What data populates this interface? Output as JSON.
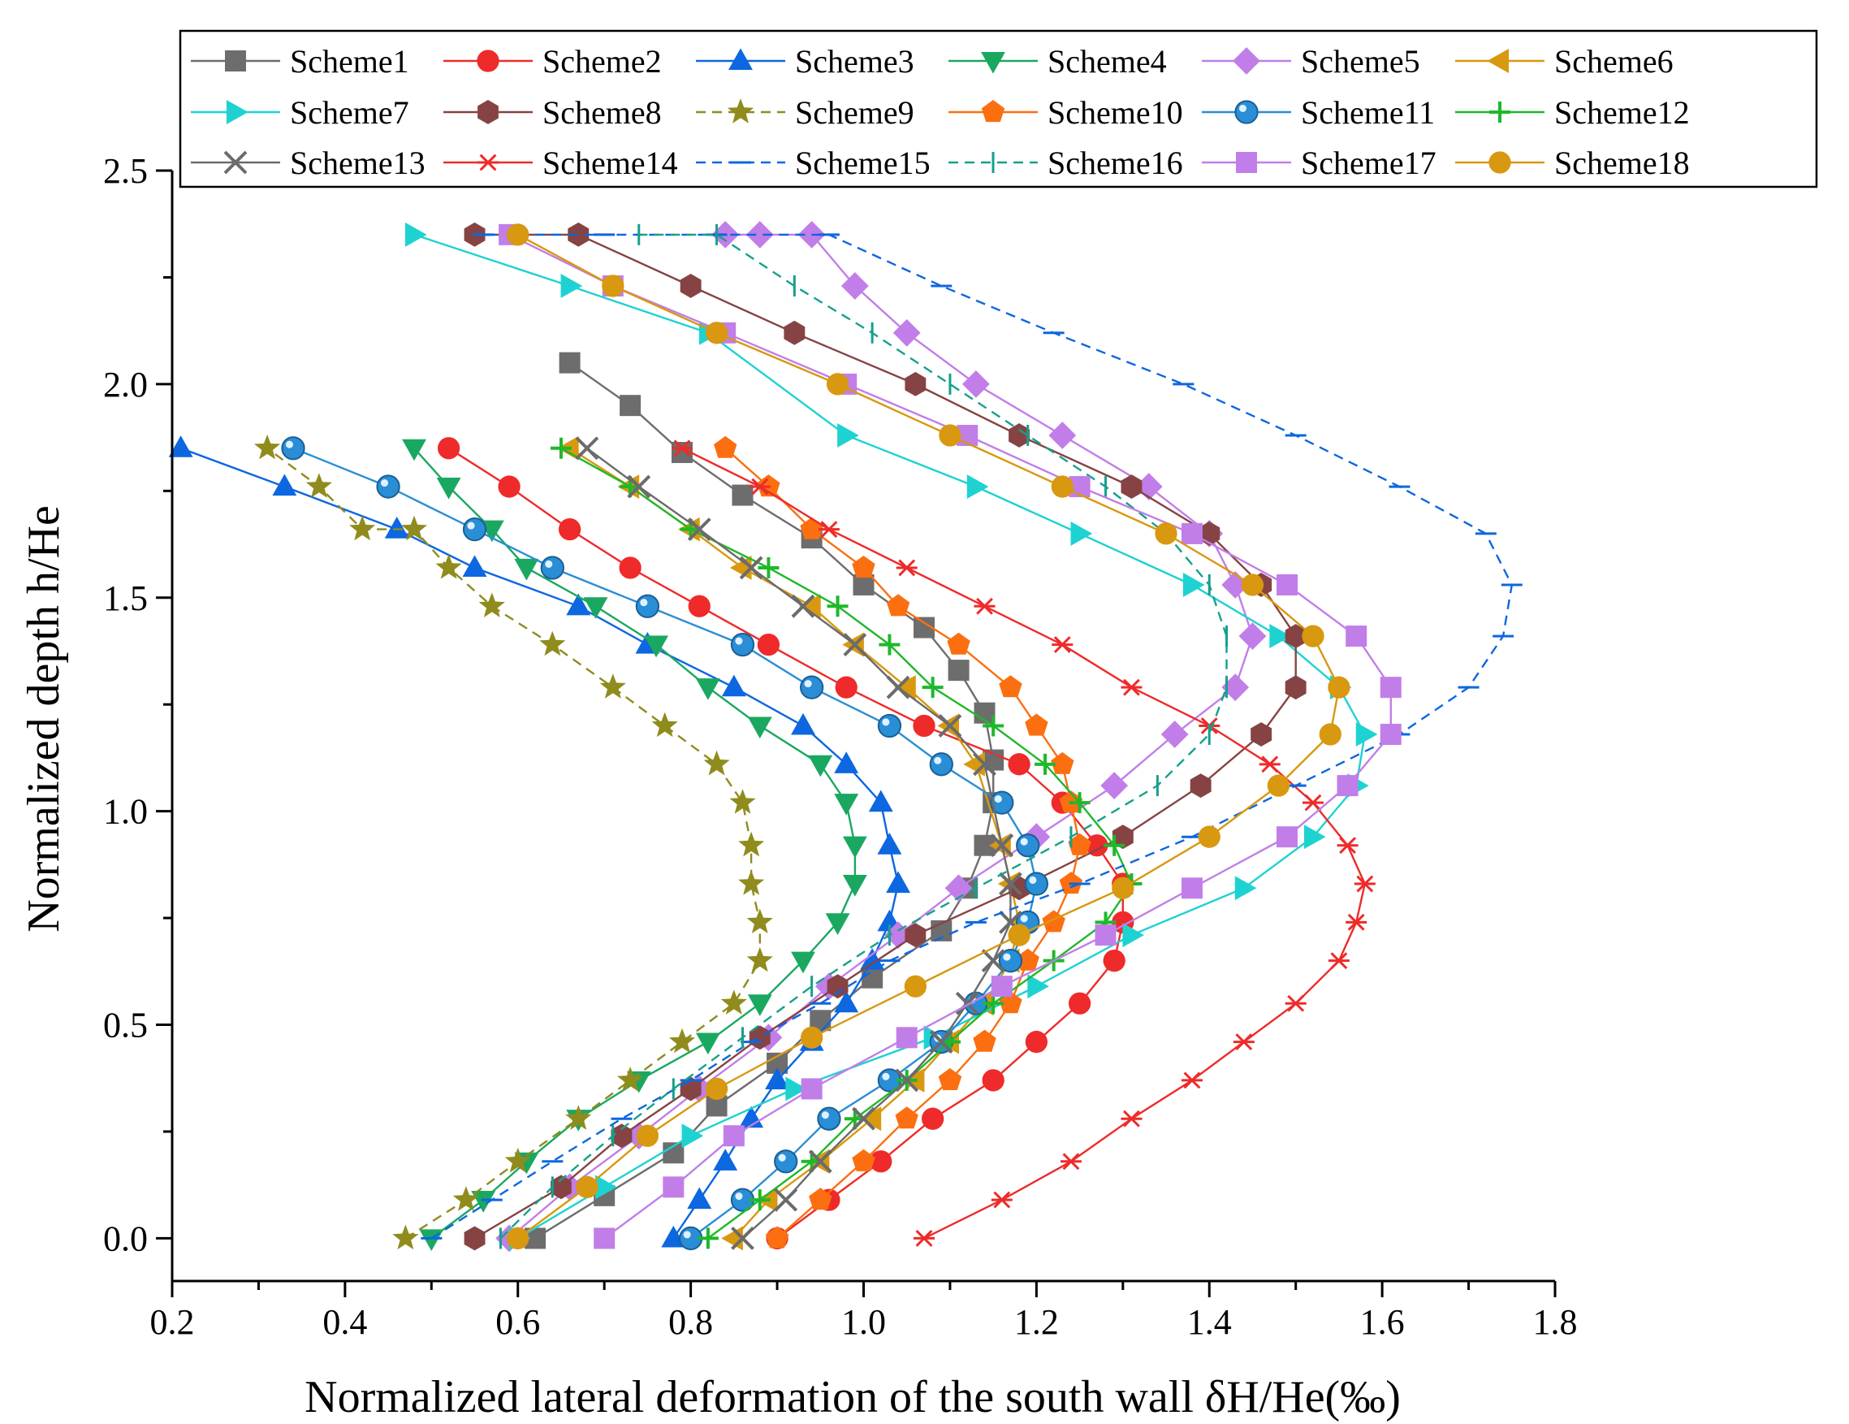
{
  "chart_data": {
    "type": "line",
    "xlabel": "Normalized lateral deformation of the south wall δH/He(‰)",
    "ylabel": "Normalized depth h/He",
    "xlim": [
      0.2,
      1.8
    ],
    "ylim": [
      -0.1,
      2.5
    ],
    "xticks": [
      "0.2",
      "0.4",
      "0.6",
      "0.8",
      "1.0",
      "1.2",
      "1.4",
      "1.6",
      "1.8"
    ],
    "yticks": [
      "0.0",
      "0.5",
      "1.0",
      "1.5",
      "2.0",
      "2.5"
    ],
    "legend_position": "top",
    "series": [
      {
        "name": "Scheme1",
        "color": "#6d6d6d",
        "marker": "square",
        "dash": "",
        "x": [
          0.62,
          0.7,
          0.78,
          0.83,
          0.9,
          0.95,
          1.01,
          1.09,
          1.12,
          1.14,
          1.15,
          1.15,
          1.14,
          1.11,
          1.07,
          1.0,
          0.94,
          0.86,
          0.79,
          0.73,
          0.66
        ],
        "y": [
          0.0,
          0.1,
          0.2,
          0.31,
          0.41,
          0.51,
          0.61,
          0.72,
          0.82,
          0.92,
          1.02,
          1.12,
          1.23,
          1.33,
          1.43,
          1.53,
          1.64,
          1.74,
          1.84,
          1.95,
          2.05
        ]
      },
      {
        "name": "Scheme2",
        "color": "#ef2a2a",
        "marker": "circle",
        "dash": "",
        "x": [
          0.9,
          0.96,
          1.02,
          1.08,
          1.15,
          1.2,
          1.25,
          1.29,
          1.3,
          1.3,
          1.27,
          1.23,
          1.18,
          1.07,
          0.98,
          0.89,
          0.81,
          0.73,
          0.66,
          0.59,
          0.52
        ],
        "y": [
          0.0,
          0.09,
          0.18,
          0.28,
          0.37,
          0.46,
          0.55,
          0.65,
          0.74,
          0.83,
          0.92,
          1.02,
          1.11,
          1.2,
          1.29,
          1.39,
          1.48,
          1.57,
          1.66,
          1.76,
          1.85
        ]
      },
      {
        "name": "Scheme3",
        "color": "#0c67e0",
        "marker": "triangle-up",
        "dash": "",
        "x": [
          0.78,
          0.81,
          0.84,
          0.87,
          0.9,
          0.94,
          0.98,
          1.01,
          1.03,
          1.04,
          1.03,
          1.02,
          0.98,
          0.93,
          0.85,
          0.75,
          0.67,
          0.55,
          0.46,
          0.33,
          0.21
        ],
        "y": [
          0.0,
          0.09,
          0.18,
          0.28,
          0.37,
          0.46,
          0.55,
          0.65,
          0.74,
          0.83,
          0.92,
          1.02,
          1.11,
          1.2,
          1.29,
          1.39,
          1.48,
          1.57,
          1.66,
          1.76,
          1.85
        ]
      },
      {
        "name": "Scheme4",
        "color": "#1aa861",
        "marker": "triangle-down",
        "dash": "",
        "x": [
          0.5,
          0.56,
          0.61,
          0.67,
          0.74,
          0.82,
          0.88,
          0.93,
          0.97,
          0.99,
          0.99,
          0.98,
          0.95,
          0.88,
          0.82,
          0.76,
          0.69,
          0.61,
          0.57,
          0.52,
          0.48
        ],
        "y": [
          0.0,
          0.09,
          0.18,
          0.28,
          0.37,
          0.46,
          0.55,
          0.65,
          0.74,
          0.83,
          0.92,
          1.02,
          1.11,
          1.2,
          1.29,
          1.39,
          1.48,
          1.57,
          1.66,
          1.76,
          1.85
        ]
      },
      {
        "name": "Scheme5",
        "color": "#c17ee8",
        "marker": "diamond",
        "dash": "",
        "x": [
          0.59,
          0.66,
          0.74,
          0.81,
          0.89,
          0.96,
          1.04,
          1.11,
          1.2,
          1.29,
          1.36,
          1.43,
          1.45,
          1.43,
          1.4,
          1.33,
          1.23,
          1.13,
          1.05,
          0.99,
          0.94,
          0.88,
          0.84
        ],
        "y": [
          0.0,
          0.12,
          0.24,
          0.35,
          0.47,
          0.59,
          0.71,
          0.82,
          0.94,
          1.06,
          1.18,
          1.29,
          1.41,
          1.53,
          1.65,
          1.76,
          1.88,
          2.0,
          2.12,
          2.23,
          2.35,
          2.35,
          2.35
        ]
      },
      {
        "name": "Scheme6",
        "color": "#d8980f",
        "marker": "triangle-left",
        "dash": "",
        "x": [
          0.85,
          0.89,
          0.95,
          1.01,
          1.06,
          1.1,
          1.14,
          1.17,
          1.18,
          1.17,
          1.16,
          1.13,
          1.1,
          1.05,
          0.99,
          0.94,
          0.86,
          0.8,
          0.73,
          0.66
        ],
        "y": [
          0.0,
          0.09,
          0.18,
          0.28,
          0.37,
          0.46,
          0.55,
          0.65,
          0.74,
          0.83,
          0.92,
          1.11,
          1.2,
          1.29,
          1.39,
          1.48,
          1.57,
          1.66,
          1.76,
          1.85
        ]
      },
      {
        "name": "Scheme7",
        "color": "#1fd2d2",
        "marker": "triangle-right",
        "dash": "",
        "x": [
          0.6,
          0.7,
          0.8,
          0.92,
          1.08,
          1.2,
          1.31,
          1.44,
          1.52,
          1.57,
          1.58,
          1.55,
          1.48,
          1.38,
          1.25,
          1.13,
          0.98,
          0.82,
          0.66,
          0.48
        ],
        "y": [
          0.0,
          0.12,
          0.24,
          0.35,
          0.47,
          0.59,
          0.71,
          0.82,
          0.94,
          1.06,
          1.18,
          1.29,
          1.41,
          1.53,
          1.65,
          1.76,
          1.88,
          2.12,
          2.23,
          2.35
        ]
      },
      {
        "name": "Scheme8",
        "color": "#864343",
        "marker": "hexagon",
        "dash": "",
        "x": [
          0.55,
          0.65,
          0.72,
          0.8,
          0.88,
          0.97,
          1.06,
          1.18,
          1.3,
          1.39,
          1.46,
          1.5,
          1.5,
          1.46,
          1.4,
          1.31,
          1.18,
          1.06,
          0.92,
          0.8,
          0.67,
          0.55
        ],
        "y": [
          0.0,
          0.12,
          0.24,
          0.35,
          0.47,
          0.59,
          0.71,
          0.82,
          0.94,
          1.06,
          1.18,
          1.29,
          1.41,
          1.53,
          1.65,
          1.76,
          1.88,
          2.0,
          2.12,
          2.23,
          2.35,
          2.35
        ]
      },
      {
        "name": "Scheme9",
        "color": "#8f8c1d",
        "marker": "star",
        "dash": "dash",
        "x": [
          0.47,
          0.54,
          0.6,
          0.67,
          0.73,
          0.79,
          0.85,
          0.88,
          0.88,
          0.87,
          0.87,
          0.86,
          0.83,
          0.77,
          0.71,
          0.64,
          0.57,
          0.52,
          0.48,
          0.42,
          0.37,
          0.31
        ],
        "y": [
          0.0,
          0.09,
          0.18,
          0.28,
          0.37,
          0.46,
          0.55,
          0.65,
          0.74,
          0.83,
          0.92,
          1.02,
          1.11,
          1.2,
          1.29,
          1.39,
          1.48,
          1.57,
          1.66,
          1.66,
          1.76,
          1.85
        ]
      },
      {
        "name": "Scheme10",
        "color": "#fb6f11",
        "marker": "pentagon",
        "dash": "",
        "x": [
          0.9,
          0.95,
          1.0,
          1.05,
          1.1,
          1.14,
          1.17,
          1.19,
          1.22,
          1.24,
          1.25,
          1.24,
          1.23,
          1.2,
          1.17,
          1.11,
          1.04,
          1.0,
          0.94,
          0.89,
          0.84
        ],
        "y": [
          0.0,
          0.09,
          0.18,
          0.28,
          0.37,
          0.46,
          0.55,
          0.65,
          0.74,
          0.83,
          0.92,
          1.02,
          1.11,
          1.2,
          1.29,
          1.39,
          1.48,
          1.57,
          1.66,
          1.76,
          1.85
        ]
      },
      {
        "name": "Scheme11",
        "color": "#2a8ed6",
        "marker": "sphere",
        "dash": "",
        "x": [
          0.8,
          0.86,
          0.91,
          0.96,
          1.03,
          1.09,
          1.13,
          1.17,
          1.19,
          1.2,
          1.19,
          1.16,
          1.09,
          1.03,
          0.94,
          0.86,
          0.75,
          0.64,
          0.55,
          0.45,
          0.34
        ],
        "y": [
          0.0,
          0.09,
          0.18,
          0.28,
          0.37,
          0.46,
          0.55,
          0.65,
          0.74,
          0.83,
          0.92,
          1.02,
          1.11,
          1.2,
          1.29,
          1.39,
          1.48,
          1.57,
          1.66,
          1.76,
          1.85
        ]
      },
      {
        "name": "Scheme12",
        "color": "#1fb82a",
        "marker": "plus",
        "dash": "",
        "x": [
          0.82,
          0.88,
          0.94,
          0.99,
          1.05,
          1.1,
          1.15,
          1.22,
          1.28,
          1.31,
          1.29,
          1.25,
          1.21,
          1.15,
          1.08,
          1.03,
          0.97,
          0.89,
          0.8,
          0.73,
          0.65
        ],
        "y": [
          0.0,
          0.09,
          0.18,
          0.28,
          0.37,
          0.46,
          0.55,
          0.65,
          0.74,
          0.83,
          0.92,
          1.02,
          1.11,
          1.2,
          1.29,
          1.39,
          1.48,
          1.57,
          1.66,
          1.76,
          1.85
        ]
      },
      {
        "name": "Scheme13",
        "color": "#6b6b6b",
        "marker": "x",
        "dash": "",
        "x": [
          0.86,
          0.91,
          0.95,
          1.0,
          1.05,
          1.09,
          1.12,
          1.15,
          1.17,
          1.17,
          1.16,
          1.14,
          1.1,
          1.04,
          0.99,
          0.93,
          0.87,
          0.81,
          0.74,
          0.68
        ],
        "y": [
          0.0,
          0.09,
          0.18,
          0.28,
          0.37,
          0.46,
          0.55,
          0.65,
          0.74,
          0.83,
          0.92,
          1.11,
          1.2,
          1.29,
          1.39,
          1.48,
          1.57,
          1.66,
          1.76,
          1.85
        ]
      },
      {
        "name": "Scheme14",
        "color": "#ef2a2a",
        "marker": "asterisk",
        "dash": "",
        "x": [
          1.07,
          1.16,
          1.24,
          1.31,
          1.38,
          1.44,
          1.5,
          1.55,
          1.57,
          1.58,
          1.56,
          1.52,
          1.47,
          1.4,
          1.31,
          1.23,
          1.14,
          1.05,
          0.96,
          0.88,
          0.79
        ],
        "y": [
          0.0,
          0.09,
          0.18,
          0.28,
          0.37,
          0.46,
          0.55,
          0.65,
          0.74,
          0.83,
          0.92,
          1.02,
          1.11,
          1.2,
          1.29,
          1.39,
          1.48,
          1.57,
          1.66,
          1.76,
          1.85
        ]
      },
      {
        "name": "Scheme15",
        "color": "#0c67e0",
        "marker": "hline",
        "dash": "dash",
        "x": [
          0.5,
          0.57,
          0.64,
          0.72,
          0.8,
          0.87,
          0.95,
          1.03,
          1.13,
          1.25,
          1.38,
          1.5,
          1.62,
          1.7,
          1.74,
          1.75,
          1.72,
          1.62,
          1.5,
          1.37,
          1.22,
          1.09,
          0.96,
          0.83,
          0.7,
          0.56
        ],
        "y": [
          0.0,
          0.09,
          0.18,
          0.28,
          0.37,
          0.46,
          0.55,
          0.65,
          0.74,
          0.83,
          0.94,
          1.06,
          1.18,
          1.29,
          1.41,
          1.53,
          1.65,
          1.76,
          1.88,
          2.0,
          2.12,
          2.23,
          2.35,
          2.35,
          2.35,
          2.35
        ]
      },
      {
        "name": "Scheme16",
        "color": "#16a08c",
        "marker": "vline",
        "dash": "dash",
        "x": [
          0.58,
          0.64,
          0.71,
          0.78,
          0.86,
          0.94,
          1.03,
          1.13,
          1.24,
          1.34,
          1.4,
          1.42,
          1.42,
          1.4,
          1.35,
          1.28,
          1.19,
          1.1,
          1.01,
          0.92,
          0.83,
          0.74
        ],
        "y": [
          0.0,
          0.12,
          0.24,
          0.35,
          0.47,
          0.59,
          0.71,
          0.82,
          0.94,
          1.06,
          1.18,
          1.29,
          1.41,
          1.53,
          1.65,
          1.76,
          1.88,
          2.0,
          2.12,
          2.23,
          2.35,
          2.35
        ]
      },
      {
        "name": "Scheme17",
        "color": "#c17ee8",
        "marker": "square",
        "dash": "",
        "x": [
          0.7,
          0.78,
          0.85,
          0.94,
          1.05,
          1.16,
          1.28,
          1.38,
          1.49,
          1.56,
          1.61,
          1.61,
          1.57,
          1.49,
          1.38,
          1.25,
          1.12,
          0.98,
          0.84,
          0.71,
          0.59
        ],
        "y": [
          0.0,
          0.12,
          0.24,
          0.35,
          0.47,
          0.59,
          0.71,
          0.82,
          0.94,
          1.06,
          1.18,
          1.29,
          1.41,
          1.53,
          1.65,
          1.76,
          1.88,
          2.0,
          2.12,
          2.23,
          2.35
        ]
      },
      {
        "name": "Scheme18",
        "color": "#d8980f",
        "marker": "circle",
        "dash": "",
        "x": [
          0.6,
          0.68,
          0.75,
          0.83,
          0.94,
          1.06,
          1.18,
          1.3,
          1.4,
          1.48,
          1.54,
          1.55,
          1.52,
          1.45,
          1.35,
          1.23,
          1.1,
          0.97,
          0.83,
          0.71,
          0.6
        ],
        "y": [
          0.0,
          0.12,
          0.24,
          0.35,
          0.47,
          0.59,
          0.71,
          0.82,
          0.94,
          1.06,
          1.18,
          1.29,
          1.41,
          1.53,
          1.65,
          1.76,
          1.88,
          2.0,
          2.12,
          2.23,
          2.35
        ]
      }
    ]
  }
}
